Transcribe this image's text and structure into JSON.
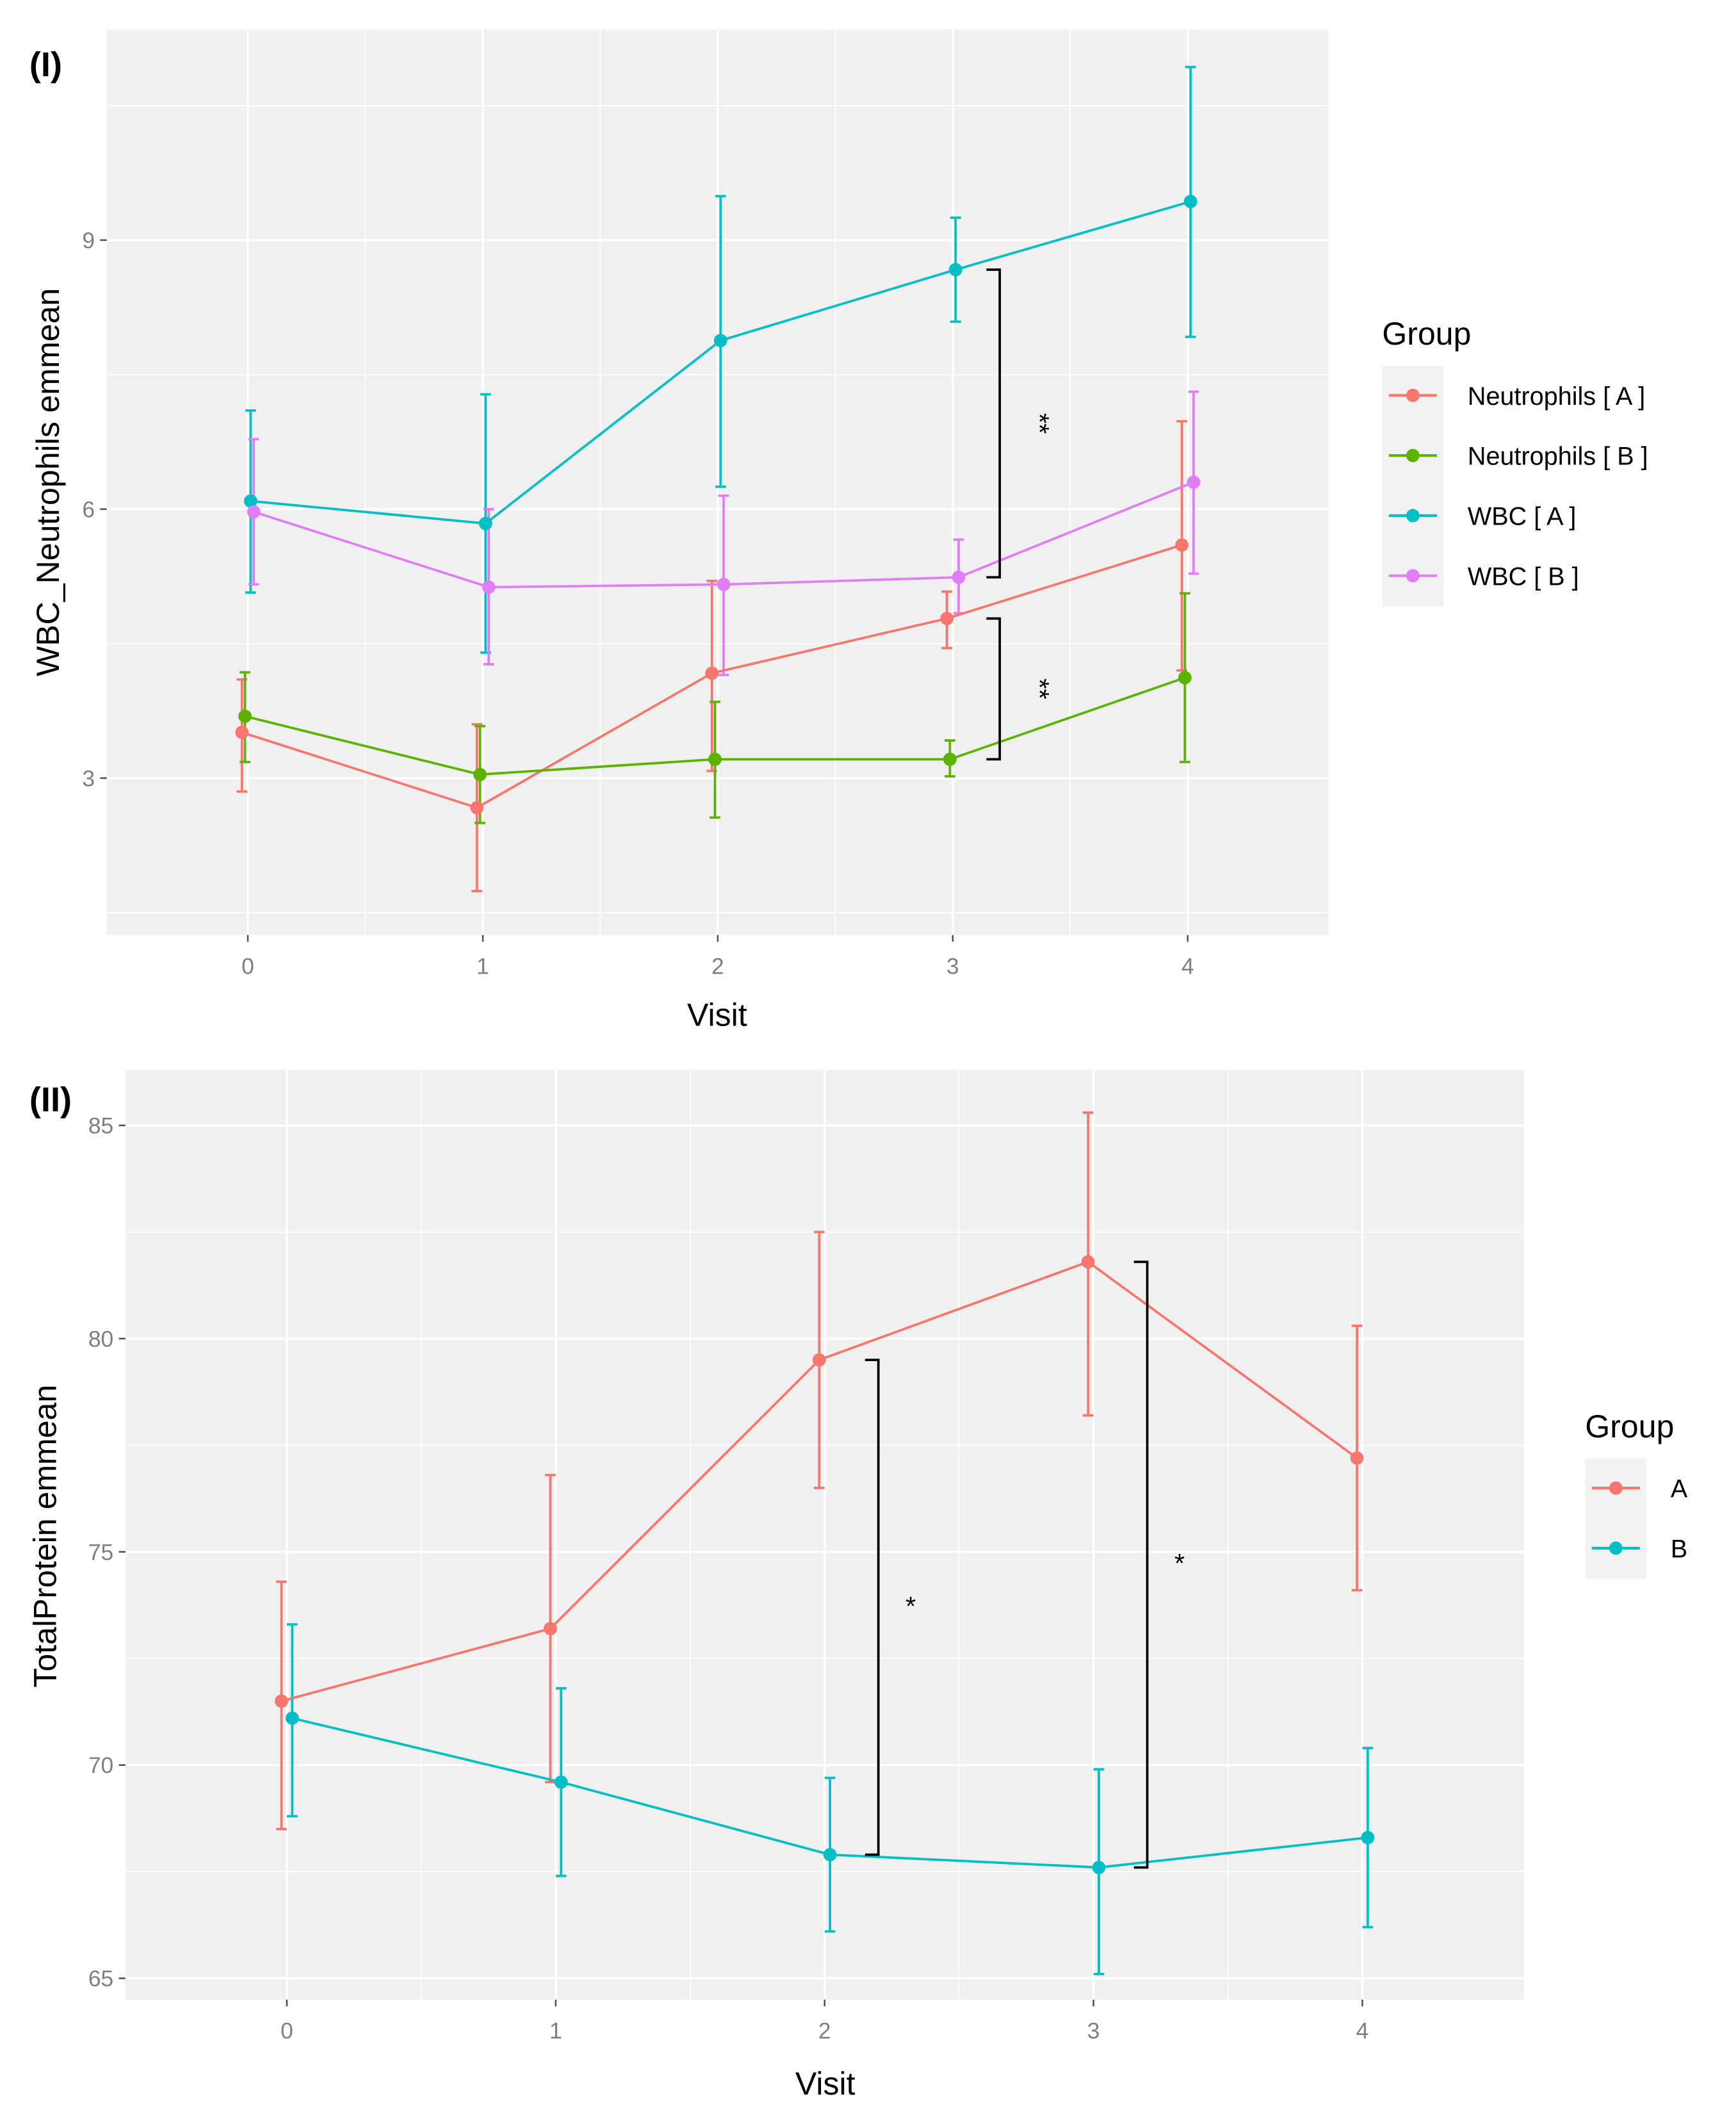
{
  "chart_data": [
    {
      "type": "line",
      "panel_label": "(I)",
      "xlabel": "Visit",
      "ylabel": "WBC_Neutrophils  emmean",
      "x": [
        0,
        1,
        2,
        3,
        4
      ],
      "x_tick_labels": [
        "0",
        "1",
        "2",
        "3",
        "4"
      ],
      "ylim": [
        1.25,
        11.35
      ],
      "y_ticks": [
        3,
        6,
        9
      ],
      "y_tick_labels": [
        "3",
        "6",
        "9"
      ],
      "grid": true,
      "legend": {
        "title": "Group",
        "position": "right"
      },
      "series": [
        {
          "name": "Neutrophils [ A ]",
          "color": "#F8766D",
          "values": [
            3.51,
            2.67,
            4.17,
            4.78,
            5.6
          ],
          "lower": [
            2.85,
            1.74,
            3.08,
            4.45,
            4.2
          ],
          "upper": [
            4.1,
            3.6,
            5.2,
            5.08,
            6.98
          ]
        },
        {
          "name": "Neutrophils [ B ]",
          "color": "#5BB300",
          "values": [
            3.69,
            3.04,
            3.21,
            3.21,
            4.12
          ],
          "lower": [
            3.18,
            2.5,
            2.56,
            3.02,
            3.18
          ],
          "upper": [
            4.18,
            3.58,
            3.85,
            3.42,
            5.06
          ]
        },
        {
          "name": "WBC [ A ]",
          "color": "#00BFC4",
          "values": [
            6.09,
            5.84,
            7.88,
            8.67,
            9.43
          ],
          "lower": [
            5.07,
            4.4,
            6.25,
            8.09,
            7.92
          ],
          "upper": [
            7.1,
            7.28,
            9.49,
            9.25,
            10.93
          ]
        },
        {
          "name": "WBC [ B ]",
          "color": "#E07EF5",
          "values": [
            5.97,
            5.13,
            5.16,
            5.24,
            6.3
          ],
          "lower": [
            5.16,
            4.27,
            4.15,
            4.84,
            5.28
          ],
          "upper": [
            6.78,
            6.0,
            6.15,
            5.66,
            7.31
          ]
        }
      ],
      "annotations": [
        {
          "text": "**",
          "visit": 3,
          "from_series": "WBC [ A ]",
          "to_series": "WBC [ B ]"
        },
        {
          "text": "**",
          "visit": 3,
          "from_series": "Neutrophils [ A ]",
          "to_series": "Neutrophils [ B ]"
        }
      ]
    },
    {
      "type": "line",
      "panel_label": "(II)",
      "xlabel": "Visit",
      "ylabel": "TotalProtein  emmean",
      "x": [
        0,
        1,
        2,
        3,
        4
      ],
      "x_tick_labels": [
        "0",
        "1",
        "2",
        "3",
        "4"
      ],
      "ylim": [
        64.5,
        86.3
      ],
      "y_ticks": [
        65,
        70,
        75,
        80,
        85
      ],
      "y_tick_labels": [
        "65",
        "70",
        "75",
        "80",
        "85"
      ],
      "grid": true,
      "legend": {
        "title": "Group",
        "position": "right"
      },
      "series": [
        {
          "name": "A",
          "color": "#F8766D",
          "values": [
            71.5,
            73.2,
            79.5,
            81.8,
            77.2
          ],
          "lower": [
            68.5,
            69.6,
            76.5,
            78.2,
            74.1
          ],
          "upper": [
            74.3,
            76.8,
            82.5,
            85.3,
            80.3
          ]
        },
        {
          "name": "B",
          "color": "#00BFC4",
          "values": [
            71.1,
            69.6,
            67.9,
            67.6,
            68.3
          ],
          "lower": [
            68.8,
            67.4,
            66.1,
            65.1,
            66.2
          ],
          "upper": [
            73.3,
            71.8,
            69.7,
            69.9,
            70.4
          ]
        }
      ],
      "annotations": [
        {
          "text": "*",
          "visit": 2,
          "from_series": "A",
          "to_series": "B"
        },
        {
          "text": "*",
          "visit": 3,
          "from_series": "A",
          "to_series": "B"
        }
      ]
    }
  ]
}
